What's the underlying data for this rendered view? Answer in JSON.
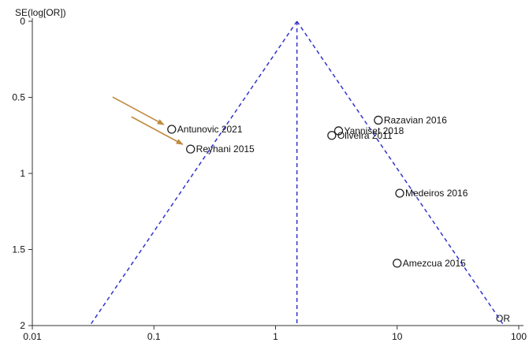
{
  "chart_data": {
    "type": "scatter",
    "subtype": "funnel plot",
    "title": "",
    "xlabel": "OR",
    "ylabel": "SE(log[OR])",
    "x_scale": "log",
    "xlim": [
      0.01,
      100
    ],
    "ylim": [
      0,
      2
    ],
    "y_inverted": true,
    "x_ticks": [
      "0.01",
      "0.1",
      "1",
      "10",
      "100"
    ],
    "y_ticks": [
      "0",
      "0.5",
      "1",
      "1.5",
      "2"
    ],
    "grid": false,
    "pooled_or": 1.5,
    "funnel_lines_color": "#3333cc",
    "marker_color": "#222222",
    "arrow_color": "#c08a3e",
    "studies": [
      {
        "name": "Antunovic 2021",
        "or": 0.14,
        "se": 0.71,
        "highlighted": true
      },
      {
        "name": "Reyhani 2015",
        "or": 0.2,
        "se": 0.84,
        "highlighted": true
      },
      {
        "name": "Razavian 2016",
        "or": 7.0,
        "se": 0.65,
        "highlighted": false
      },
      {
        "name": "Yanniset 2018",
        "or": 3.3,
        "se": 0.72,
        "highlighted": false
      },
      {
        "name": "Oliveira 2011",
        "or": 2.9,
        "se": 0.75,
        "highlighted": false
      },
      {
        "name": "Medeiros 2016",
        "or": 10.5,
        "se": 1.13,
        "highlighted": false
      },
      {
        "name": "Amezcua 2015",
        "or": 10.0,
        "se": 1.59,
        "highlighted": false
      }
    ]
  }
}
